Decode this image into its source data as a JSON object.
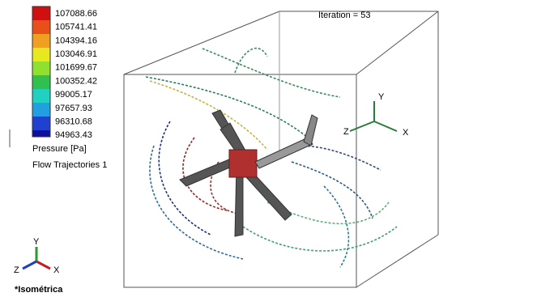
{
  "legend": {
    "values": [
      "107088.66",
      "105741.41",
      "104394.16",
      "103046.91",
      "101699.67",
      "100352.42",
      "99005.17",
      "97657.93",
      "96310.68",
      "94963.43"
    ],
    "quantity": "Pressure [Pa]",
    "plot_name": "Flow Trajectories 1"
  },
  "status": {
    "iteration": "Iteration = 53"
  },
  "view_triad": {
    "y": "Y",
    "z": "Z",
    "x": "X"
  },
  "model_triad": {
    "y": "Y",
    "z": "Z",
    "x": "X"
  },
  "view": {
    "name": "*Isométrica"
  }
}
